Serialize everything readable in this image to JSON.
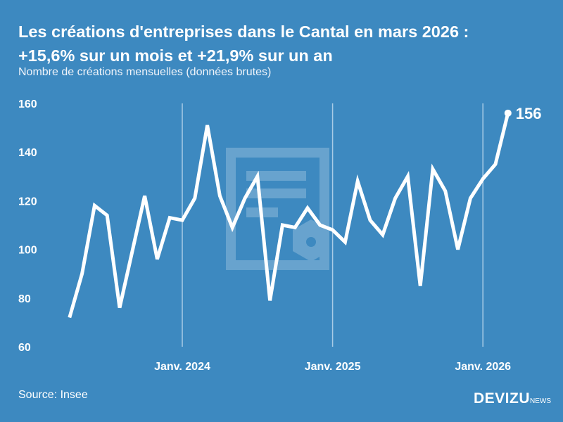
{
  "title_line1": "Les créations d'entreprises dans le Cantal en mars 2026 :",
  "title_line2": "+15,6% sur un mois et +21,9% sur un an",
  "subtitle": "Nombre de créations mensuelles (données brutes)",
  "source": "Source: Insee",
  "logo": {
    "main": "DEVIZU",
    "suffix": "NEWS"
  },
  "colors": {
    "background": "#3d89c0",
    "line": "#ffffff"
  },
  "chart_data": {
    "type": "line",
    "title": "Les créations d'entreprises dans le Cantal en mars 2026 : +15,6% sur un mois et +21,9% sur un an",
    "ylabel": "",
    "xlabel": "",
    "ylim": [
      60,
      160
    ],
    "yticks": [
      60,
      80,
      100,
      120,
      140,
      160
    ],
    "xticks": [
      {
        "month": "2024-01",
        "label": "Janv. 2024"
      },
      {
        "month": "2025-01",
        "label": "Janv. 2025"
      },
      {
        "month": "2026-01",
        "label": "Janv. 2026"
      }
    ],
    "grid": "vertical lines at January",
    "x": [
      "2023-04",
      "2023-05",
      "2023-06",
      "2023-07",
      "2023-08",
      "2023-09",
      "2023-10",
      "2023-11",
      "2023-12",
      "2024-01",
      "2024-02",
      "2024-03",
      "2024-04",
      "2024-05",
      "2024-06",
      "2024-07",
      "2024-08",
      "2024-09",
      "2024-10",
      "2024-11",
      "2024-12",
      "2025-01",
      "2025-02",
      "2025-03",
      "2025-04",
      "2025-05",
      "2025-06",
      "2025-07",
      "2025-08",
      "2025-09",
      "2025-10",
      "2025-11",
      "2025-12",
      "2026-01",
      "2026-02",
      "2026-03"
    ],
    "values": [
      72,
      90,
      118,
      114,
      76,
      99,
      122,
      96,
      113,
      112,
      121,
      151,
      122,
      109,
      121,
      130,
      79,
      110,
      109,
      117,
      110,
      108,
      103,
      128,
      112,
      106,
      121,
      130,
      85,
      133,
      124,
      100,
      121,
      129,
      135,
      156
    ],
    "last_label": "156"
  }
}
